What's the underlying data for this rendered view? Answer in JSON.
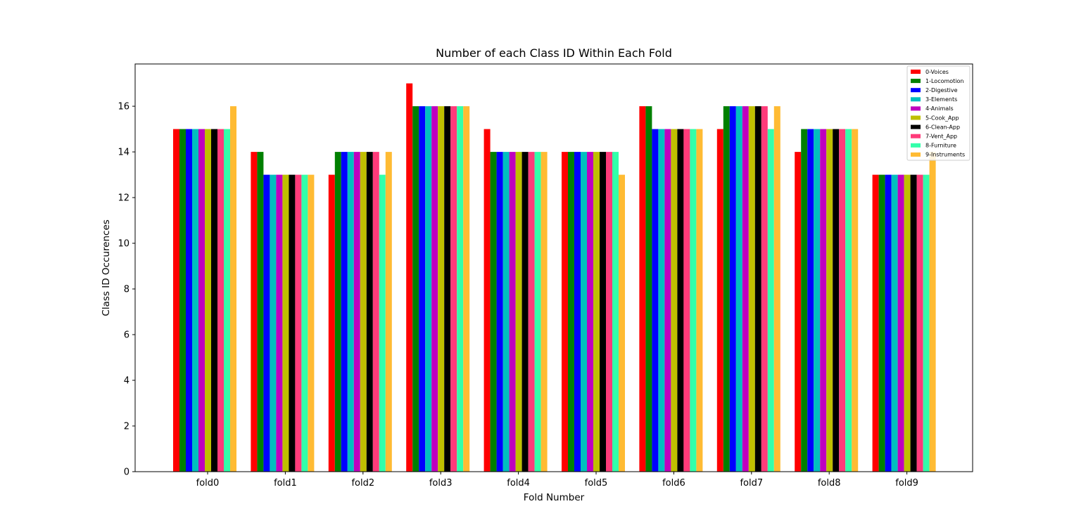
{
  "chart_data": {
    "type": "bar",
    "title": "Number of each Class ID Within Each Fold",
    "xlabel": "Fold Number",
    "ylabel": "Class ID Occurences",
    "ylim": [
      0,
      17.85
    ],
    "yticks": [
      0,
      2,
      4,
      6,
      8,
      10,
      12,
      14,
      16
    ],
    "grid": false,
    "legend_position": "top-right",
    "categories": [
      "fold0",
      "fold1",
      "fold2",
      "fold3",
      "fold4",
      "fold5",
      "fold6",
      "fold7",
      "fold8",
      "fold9"
    ],
    "series": [
      {
        "name": "0-Voices",
        "color": "#ff0000",
        "values": [
          15,
          14,
          13,
          17,
          15,
          14,
          16,
          15,
          14,
          13
        ]
      },
      {
        "name": "1-Locomotion",
        "color": "#008000",
        "values": [
          15,
          14,
          14,
          16,
          14,
          14,
          16,
          16,
          15,
          13
        ]
      },
      {
        "name": "2-Digestive",
        "color": "#0000ff",
        "values": [
          15,
          13,
          14,
          16,
          14,
          14,
          15,
          16,
          15,
          13
        ]
      },
      {
        "name": "3-Elements",
        "color": "#00bfbf",
        "values": [
          15,
          13,
          14,
          16,
          14,
          14,
          15,
          16,
          15,
          13
        ]
      },
      {
        "name": "4-Animals",
        "color": "#bf00bf",
        "values": [
          15,
          13,
          14,
          16,
          14,
          14,
          15,
          16,
          15,
          13
        ]
      },
      {
        "name": "5-Cook_App",
        "color": "#bfbf00",
        "values": [
          15,
          13,
          14,
          16,
          14,
          14,
          15,
          16,
          15,
          13
        ]
      },
      {
        "name": "6-Clean-App",
        "color": "#000000",
        "values": [
          15,
          13,
          14,
          16,
          14,
          14,
          15,
          16,
          15,
          13
        ]
      },
      {
        "name": "7-Vent_App",
        "color": "#ff3b7a",
        "values": [
          15,
          13,
          14,
          16,
          14,
          14,
          15,
          16,
          15,
          13
        ]
      },
      {
        "name": "8-Furniture",
        "color": "#33ffaa",
        "values": [
          15,
          13,
          13,
          16,
          14,
          14,
          15,
          15,
          15,
          13
        ]
      },
      {
        "name": "9-Instruments",
        "color": "#ffbb33",
        "values": [
          16,
          13,
          14,
          16,
          14,
          13,
          15,
          16,
          15,
          14
        ]
      }
    ]
  }
}
